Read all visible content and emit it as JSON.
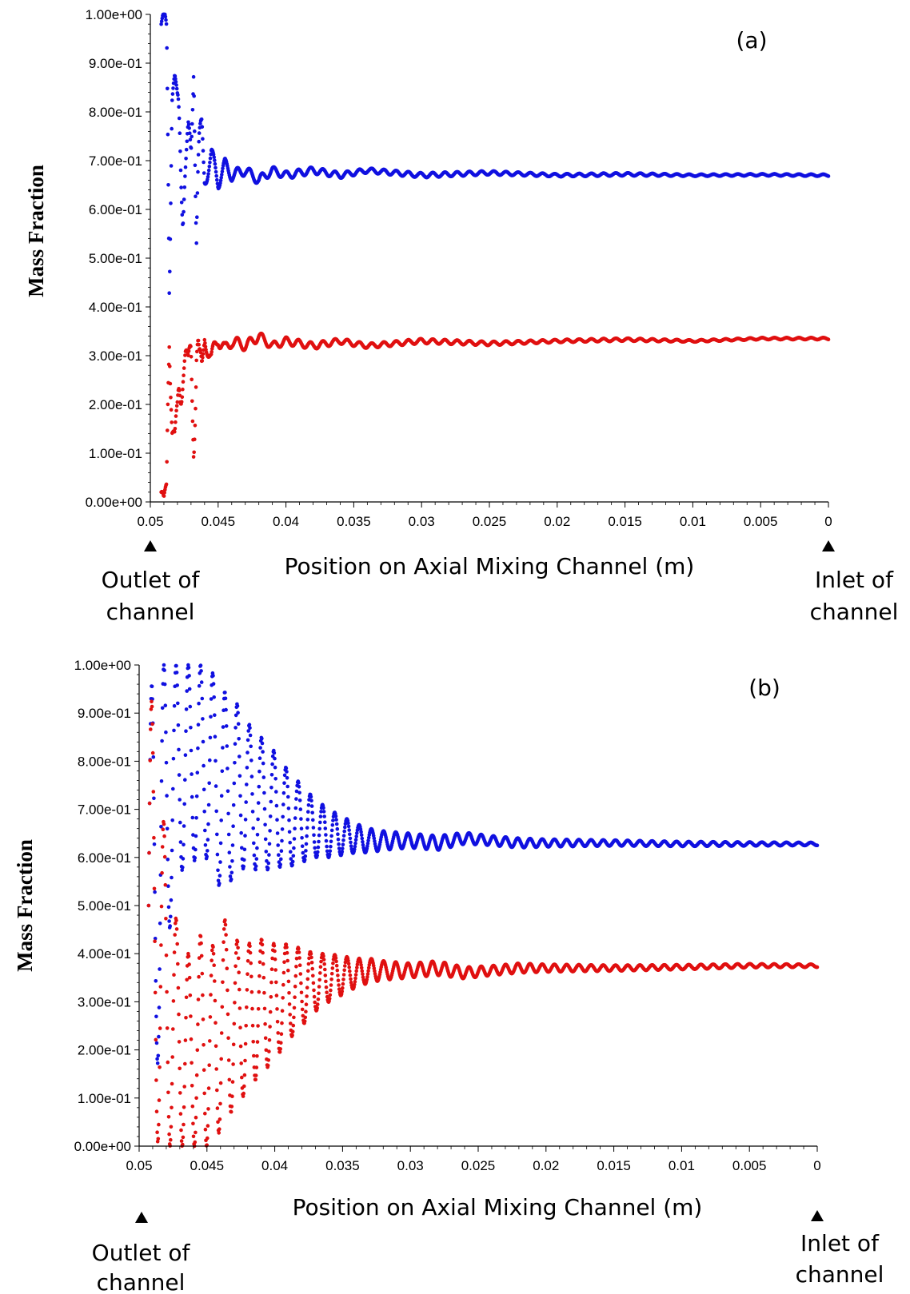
{
  "chart_data": [
    {
      "type": "scatter",
      "panel_label": "(a)",
      "xlabel": "Position on Axial Mixing Channel (m)",
      "ylabel": "Mass Fraction",
      "xlim": [
        0.05,
        0
      ],
      "ylim": [
        0,
        1
      ],
      "x_reversed": true,
      "x_ticks": [
        "0.05",
        "0.045",
        "0.04",
        "0.035",
        "0.03",
        "0.025",
        "0.02",
        "0.015",
        "0.01",
        "0.005",
        "0"
      ],
      "y_ticks": [
        "0.00e+00",
        "1.00e-01",
        "2.00e-01",
        "3.00e-01",
        "4.00e-01",
        "5.00e-01",
        "6.00e-01",
        "7.00e-01",
        "8.00e-01",
        "9.00e-01",
        "1.00e+00"
      ],
      "annotations": {
        "outlet": [
          "Outlet of",
          "channel"
        ],
        "inlet": [
          "Inlet of",
          "channel"
        ]
      },
      "series": [
        {
          "color": "#1010e0",
          "steady_value": 0.67,
          "spike_start": 0.0492,
          "x": [
            0.0492,
            0.049,
            0.0488,
            0.0486,
            0.0484,
            0.0482,
            0.048,
            0.0478,
            0.0476,
            0.0474,
            0.0472,
            0.047,
            0.0468,
            0.0466,
            0.0464,
            0.0462,
            0.046,
            0.0455,
            0.045,
            0.0445,
            0.044,
            0.043,
            0.042,
            0.041,
            0.04,
            0.038,
            0.036,
            0.034,
            0.03,
            0.025,
            0.02,
            0.015,
            0.01,
            0.005,
            0.0
          ],
          "y": [
            0.98,
            1.0,
            0.97,
            0.55,
            0.84,
            0.87,
            0.82,
            0.76,
            0.66,
            0.69,
            0.74,
            0.7,
            0.9,
            0.62,
            0.72,
            0.75,
            0.66,
            0.71,
            0.66,
            0.69,
            0.67,
            0.68,
            0.66,
            0.68,
            0.67,
            0.68,
            0.67,
            0.68,
            0.67,
            0.675,
            0.67,
            0.672,
            0.67,
            0.671,
            0.67
          ],
          "amplitude": [
            0.01,
            0.01,
            0.02,
            0.15,
            0.03,
            0.01,
            0.02,
            0.1,
            0.1,
            0.04,
            0.04,
            0.05,
            0.02,
            0.14,
            0.05,
            0.04,
            0.02,
            0.02,
            0.02,
            0.015,
            0.012,
            0.01,
            0.01,
            0.008,
            0.008,
            0.007,
            0.006,
            0.005,
            0.005,
            0.004,
            0.003,
            0.003,
            0.002,
            0.002,
            0.002
          ]
        },
        {
          "color": "#e01010",
          "steady_value": 0.335,
          "spike_start": 0.0492,
          "x": [
            0.0492,
            0.049,
            0.0488,
            0.0486,
            0.0484,
            0.0482,
            0.048,
            0.0478,
            0.0476,
            0.0474,
            0.0472,
            0.047,
            0.0468,
            0.0466,
            0.0464,
            0.0462,
            0.046,
            0.0455,
            0.045,
            0.0445,
            0.044,
            0.043,
            0.042,
            0.041,
            0.04,
            0.038,
            0.036,
            0.034,
            0.03,
            0.025,
            0.02,
            0.015,
            0.01,
            0.005,
            0.0
          ],
          "y": [
            0.02,
            0.0,
            0.03,
            0.45,
            0.16,
            0.13,
            0.18,
            0.24,
            0.34,
            0.31,
            0.26,
            0.3,
            0.1,
            0.38,
            0.28,
            0.25,
            0.34,
            0.29,
            0.34,
            0.31,
            0.33,
            0.32,
            0.34,
            0.32,
            0.33,
            0.32,
            0.33,
            0.32,
            0.33,
            0.325,
            0.33,
            0.333,
            0.33,
            0.335,
            0.335
          ],
          "amplitude": [
            0.02,
            0.01,
            0.02,
            0.15,
            0.03,
            0.02,
            0.03,
            0.1,
            0.1,
            0.04,
            0.04,
            0.05,
            0.02,
            0.14,
            0.05,
            0.04,
            0.02,
            0.02,
            0.02,
            0.015,
            0.012,
            0.01,
            0.01,
            0.008,
            0.008,
            0.007,
            0.006,
            0.005,
            0.005,
            0.004,
            0.003,
            0.003,
            0.002,
            0.002,
            0.002
          ]
        }
      ]
    },
    {
      "type": "scatter",
      "panel_label": "(b)",
      "xlabel": "Position on Axial Mixing Channel (m)",
      "ylabel": "Mass Fraction",
      "xlim": [
        0.05,
        0
      ],
      "ylim": [
        0,
        1
      ],
      "x_reversed": true,
      "x_ticks": [
        "0.05",
        "0.045",
        "0.04",
        "0.035",
        "0.03",
        "0.025",
        "0.02",
        "0.015",
        "0.01",
        "0.005",
        "0"
      ],
      "y_ticks": [
        "0.00e+00",
        "1.00e-01",
        "2.00e-01",
        "3.00e-01",
        "4.00e-01",
        "5.00e-01",
        "6.00e-01",
        "7.00e-01",
        "8.00e-01",
        "9.00e-01",
        "1.00e+00"
      ],
      "annotations": {
        "outlet": [
          "Outlet of",
          "channel"
        ],
        "inlet": [
          "Inlet of",
          "channel"
        ]
      },
      "series": [
        {
          "color": "#1010e0",
          "steady_value": 0.63,
          "spike_start": 0.0493,
          "x": [
            0.0492,
            0.0485,
            0.048,
            0.0475,
            0.047,
            0.0465,
            0.046,
            0.0455,
            0.045,
            0.0445,
            0.044,
            0.0435,
            0.043,
            0.042,
            0.041,
            0.04,
            0.039,
            0.038,
            0.037,
            0.036,
            0.035,
            0.034,
            0.033,
            0.032,
            0.03,
            0.028,
            0.026,
            0.024,
            0.022,
            0.02,
            0.015,
            0.01,
            0.005,
            0.0
          ],
          "y": [
            0.5,
            0.6,
            0.7,
            0.75,
            0.78,
            0.8,
            0.8,
            0.78,
            0.8,
            0.78,
            0.75,
            0.73,
            0.75,
            0.73,
            0.71,
            0.7,
            0.68,
            0.67,
            0.66,
            0.65,
            0.645,
            0.64,
            0.635,
            0.635,
            0.635,
            0.63,
            0.64,
            0.635,
            0.63,
            0.63,
            0.63,
            0.628,
            0.628,
            0.628
          ],
          "amplitude": [
            0.45,
            0.4,
            0.3,
            0.25,
            0.22,
            0.2,
            0.2,
            0.22,
            0.2,
            0.2,
            0.22,
            0.2,
            0.18,
            0.15,
            0.14,
            0.12,
            0.1,
            0.08,
            0.06,
            0.05,
            0.04,
            0.03,
            0.025,
            0.02,
            0.015,
            0.015,
            0.012,
            0.01,
            0.01,
            0.008,
            0.006,
            0.005,
            0.004,
            0.003
          ]
        },
        {
          "color": "#e01010",
          "steady_value": 0.375,
          "spike_start": 0.0493,
          "x": [
            0.0492,
            0.0485,
            0.048,
            0.0475,
            0.047,
            0.0465,
            0.046,
            0.0455,
            0.045,
            0.0445,
            0.044,
            0.0435,
            0.043,
            0.042,
            0.041,
            0.04,
            0.039,
            0.038,
            0.037,
            0.036,
            0.035,
            0.034,
            0.033,
            0.032,
            0.03,
            0.028,
            0.026,
            0.024,
            0.022,
            0.02,
            0.015,
            0.01,
            0.005,
            0.0
          ],
          "y": [
            0.5,
            0.4,
            0.3,
            0.25,
            0.22,
            0.2,
            0.2,
            0.22,
            0.2,
            0.22,
            0.25,
            0.27,
            0.25,
            0.27,
            0.29,
            0.3,
            0.32,
            0.33,
            0.34,
            0.35,
            0.355,
            0.36,
            0.365,
            0.365,
            0.365,
            0.37,
            0.36,
            0.365,
            0.37,
            0.37,
            0.37,
            0.372,
            0.375,
            0.375
          ],
          "amplitude": [
            0.45,
            0.4,
            0.3,
            0.25,
            0.22,
            0.2,
            0.2,
            0.22,
            0.2,
            0.2,
            0.22,
            0.2,
            0.18,
            0.15,
            0.14,
            0.12,
            0.1,
            0.08,
            0.06,
            0.05,
            0.04,
            0.03,
            0.025,
            0.02,
            0.015,
            0.015,
            0.012,
            0.01,
            0.01,
            0.008,
            0.006,
            0.005,
            0.004,
            0.003
          ]
        }
      ]
    }
  ]
}
